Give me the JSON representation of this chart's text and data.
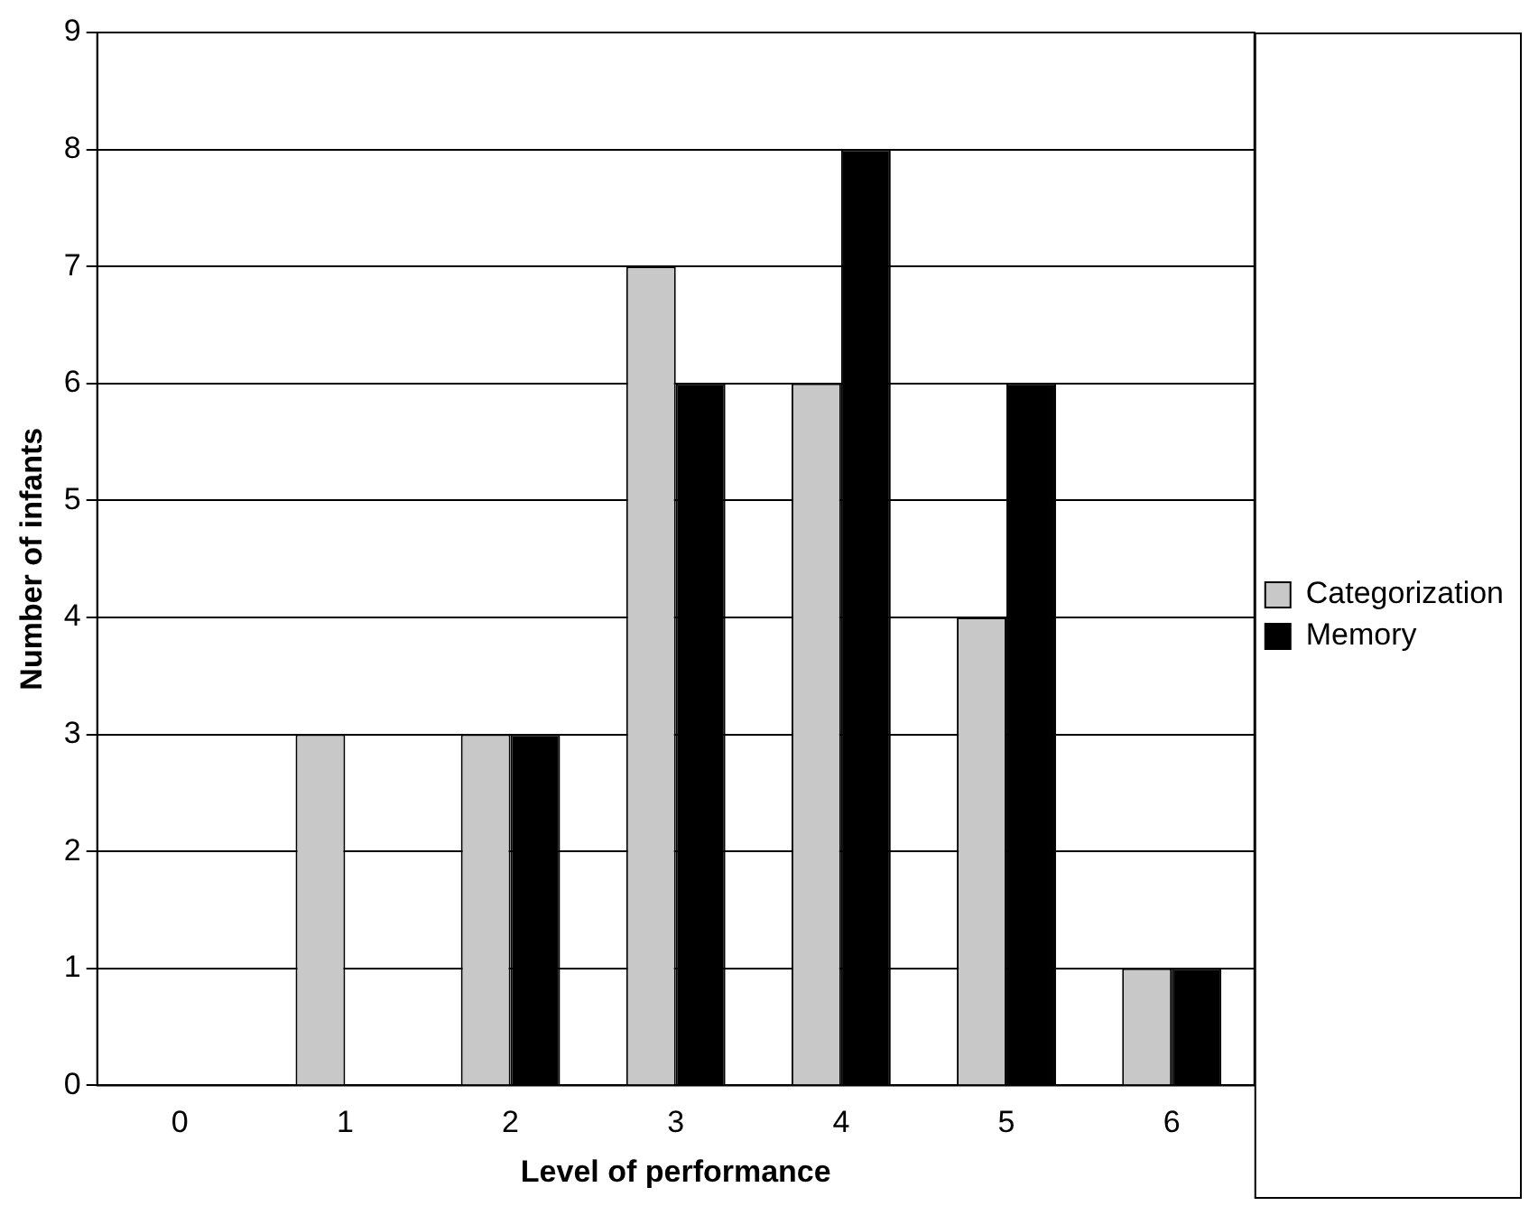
{
  "chart_data": {
    "type": "bar",
    "xlabel": "Level of performance",
    "ylabel": "Number of infants",
    "categories": [
      "0",
      "1",
      "2",
      "3",
      "4",
      "5",
      "6"
    ],
    "series": [
      {
        "name": "Categorization",
        "color": "#c8c8c8",
        "values": [
          0,
          3,
          3,
          7,
          6,
          4,
          1
        ]
      },
      {
        "name": "Memory",
        "color": "#000000",
        "values": [
          0,
          0,
          3,
          6,
          8,
          6,
          1
        ]
      }
    ],
    "ylim": [
      0,
      9
    ],
    "yticks": [
      0,
      1,
      2,
      3,
      4,
      5,
      6,
      7,
      8,
      9
    ],
    "grid": "y",
    "legend": "right"
  }
}
